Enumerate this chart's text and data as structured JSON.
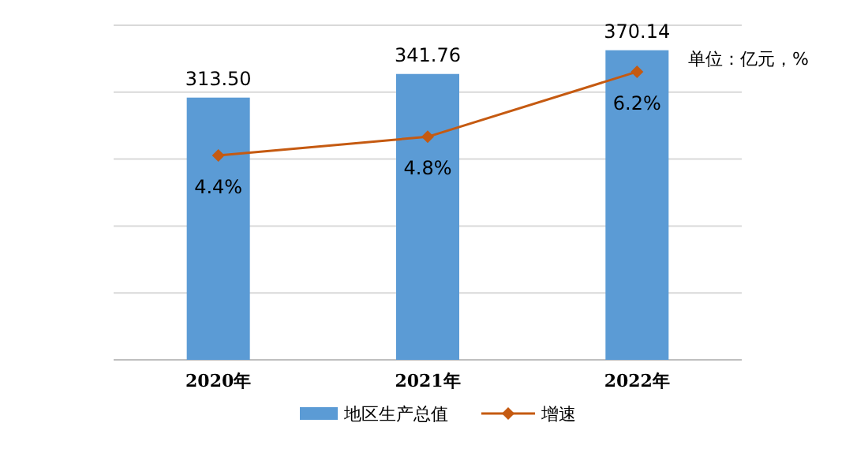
{
  "chart_data": {
    "type": "bar",
    "categories": [
      "2020年",
      "2021年",
      "2022年"
    ],
    "series": [
      {
        "name": "地区生产总值",
        "color": "#5b9bd5",
        "values": [
          313.5,
          341.76,
          370.14
        ],
        "value_labels": [
          "313.50",
          "341.76",
          "370.14"
        ]
      },
      {
        "name": "增速",
        "type": "line",
        "axis": "y2",
        "color": "#c55a11",
        "values": [
          4.4,
          4.8,
          6.2
        ],
        "value_labels": [
          "4.4%",
          "4.8%",
          "6.2%"
        ]
      }
    ],
    "ylim": [
      0,
      400
    ],
    "yticks": [
      {
        "value": 0,
        "label": null
      },
      {
        "value": 80,
        "label": null
      },
      {
        "value": 160,
        "label": null
      },
      {
        "value": 240,
        "label": null
      },
      {
        "value": 320,
        "label": null
      },
      {
        "value": 400,
        "label": null
      }
    ],
    "y2lim": [
      0,
      7.2
    ],
    "grid": "y",
    "tick_labels": "x",
    "legend": "bottom",
    "marker": "diamond",
    "annotations": [
      "单位：亿元，%"
    ]
  }
}
